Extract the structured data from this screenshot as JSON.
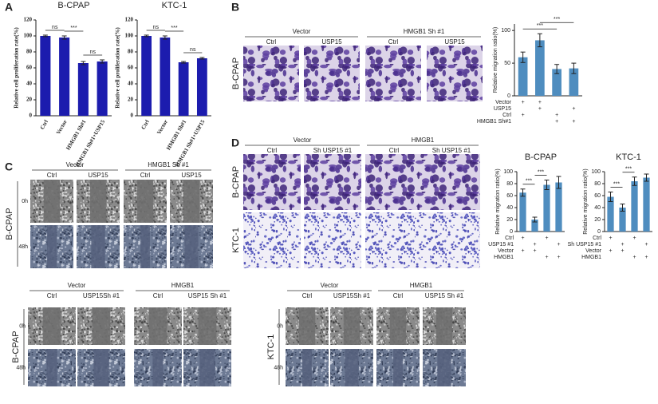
{
  "panel_labels": [
    "A",
    "B",
    "C",
    "D"
  ],
  "image_panels": {
    "B": {
      "groups": [
        "Vector",
        "HMGB1 Sh #1"
      ],
      "columns": [
        "Ctrl",
        "USP15",
        "Ctrl",
        "USP15"
      ],
      "rows": [
        "B-CPAP"
      ]
    },
    "C_top": {
      "groups": [
        "Vector",
        "HMGB1 Sh #1"
      ],
      "columns": [
        "Ctrl",
        "USP15",
        "Ctrl",
        "USP15"
      ],
      "rows": [
        "B-CPAP"
      ],
      "times": [
        "0h",
        "48h"
      ]
    },
    "C_bottom_left": {
      "groups": [
        "Vector",
        "HMGB1"
      ],
      "columns": [
        "Ctrl",
        "USP15Sh #1",
        "Ctrl",
        "USP15 Sh #1"
      ],
      "rows": [
        "B-CPAP"
      ],
      "times": [
        "0h",
        "48h"
      ]
    },
    "C_bottom_right": {
      "groups": [
        "Vector",
        "HMGB1"
      ],
      "columns": [
        "Ctrl",
        "USP15Sh #1",
        "Ctrl",
        "USP15 Sh #1"
      ],
      "rows": [
        "KTC-1"
      ],
      "times": [
        "0h",
        "48h"
      ]
    },
    "D": {
      "groups": [
        "Vector",
        "HMGB1"
      ],
      "columns": [
        "Ctrl",
        "Sh USP15 #1",
        "Ctrl",
        "Sh USP15 #1"
      ],
      "rows": [
        "B-CPAP",
        "KTC-1"
      ]
    }
  },
  "chart_data": [
    {
      "type": "bar",
      "title": "B-CPAP",
      "ylabel": "Relative cell proliferation rate(%)",
      "categories": [
        "Ctrl",
        "Vector",
        "HMGB1 Sh#1",
        "HMGB1 Sh#1+USP15"
      ],
      "values": [
        100,
        98,
        66,
        68
      ],
      "errors": [
        1,
        2,
        2,
        2
      ],
      "color": "#1c1cae",
      "ylim": [
        0,
        120
      ],
      "yticks": [
        0,
        20,
        40,
        60,
        80,
        100,
        120
      ],
      "brackets": [
        {
          "from": 0,
          "to": 1,
          "label": "ns"
        },
        {
          "from": 1,
          "to": 2,
          "label": "***"
        },
        {
          "from": 2,
          "to": 3,
          "label": "ns"
        }
      ]
    },
    {
      "type": "bar",
      "title": "KTC-1",
      "ylabel": "Relative cell proliferation rate(%)",
      "categories": [
        "Ctrl",
        "Vector",
        "HMGB1 Sh#1",
        "HMGB1 Sh#1+USP15"
      ],
      "values": [
        100,
        98,
        67,
        72
      ],
      "errors": [
        1,
        2,
        1,
        1
      ],
      "color": "#1c1cae",
      "ylim": [
        0,
        120
      ],
      "yticks": [
        0,
        20,
        40,
        60,
        80,
        100,
        120
      ],
      "brackets": [
        {
          "from": 0,
          "to": 1,
          "label": "ns"
        },
        {
          "from": 1,
          "to": 2,
          "label": "***"
        },
        {
          "from": 2,
          "to": 3,
          "label": "ns"
        }
      ]
    },
    {
      "type": "bar",
      "ylabel": "Relative migration ratio(%)",
      "values": [
        59,
        85,
        41,
        42
      ],
      "errors": [
        8,
        10,
        7,
        8
      ],
      "color": "#4f8dbf",
      "ylim": [
        0,
        110
      ],
      "yticks": [
        0,
        50,
        100
      ],
      "brackets": [
        {
          "from": 0,
          "to": 2,
          "label": "***"
        },
        {
          "from": 1,
          "to": 3,
          "label": "***"
        }
      ],
      "condition_rows": [
        {
          "label": "Vector",
          "marks": [
            "+",
            "+",
            null,
            null
          ]
        },
        {
          "label": "USP15",
          "marks": [
            null,
            "+",
            null,
            "+"
          ]
        },
        {
          "label": "Ctrl",
          "marks": [
            "+",
            null,
            "+",
            null
          ]
        },
        {
          "label": "HMGB1 Sh#1",
          "marks": [
            null,
            null,
            "+",
            "+"
          ]
        }
      ]
    },
    {
      "type": "bar",
      "title": "B-CPAP",
      "ylabel": "Relative  migration ratio(%)",
      "values": [
        65,
        20,
        78,
        82
      ],
      "errors": [
        6,
        4,
        8,
        10
      ],
      "color": "#4f8dbf",
      "ylim": [
        0,
        100
      ],
      "yticks": [
        0,
        20,
        40,
        60,
        80,
        100
      ],
      "brackets": [
        {
          "from": 0,
          "to": 1,
          "label": "***"
        },
        {
          "from": 1,
          "to": 2,
          "label": "***"
        }
      ],
      "condition_rows": [
        {
          "label": "Ctrl",
          "marks": [
            "+",
            null,
            "+",
            null
          ]
        },
        {
          "label": "USP15 #1",
          "marks": [
            null,
            "+",
            null,
            "+"
          ]
        },
        {
          "label": "Vector",
          "marks": [
            "+",
            "+",
            null,
            null
          ]
        },
        {
          "label": "HMGB1",
          "marks": [
            null,
            null,
            "+",
            "+"
          ]
        }
      ]
    },
    {
      "type": "bar",
      "title": "KTC-1",
      "ylabel": "Relative  migration ratio(%)",
      "values": [
        58,
        40,
        84,
        90
      ],
      "errors": [
        8,
        6,
        7,
        6
      ],
      "color": "#4f8dbf",
      "ylim": [
        0,
        100
      ],
      "yticks": [
        0,
        20,
        40,
        60,
        80,
        100
      ],
      "brackets": [
        {
          "from": 0,
          "to": 1,
          "label": "***"
        },
        {
          "from": 1,
          "to": 2,
          "label": "***"
        }
      ],
      "condition_rows": [
        {
          "label": "Ctrl",
          "marks": [
            "+",
            null,
            "+",
            null
          ]
        },
        {
          "label": "Sh USP15 #1",
          "marks": [
            null,
            "+",
            null,
            "+"
          ]
        },
        {
          "label": "Vector",
          "marks": [
            "+",
            "+",
            null,
            null
          ]
        },
        {
          "label": "HMGB1",
          "marks": [
            null,
            null,
            "+",
            "+"
          ]
        }
      ]
    }
  ]
}
